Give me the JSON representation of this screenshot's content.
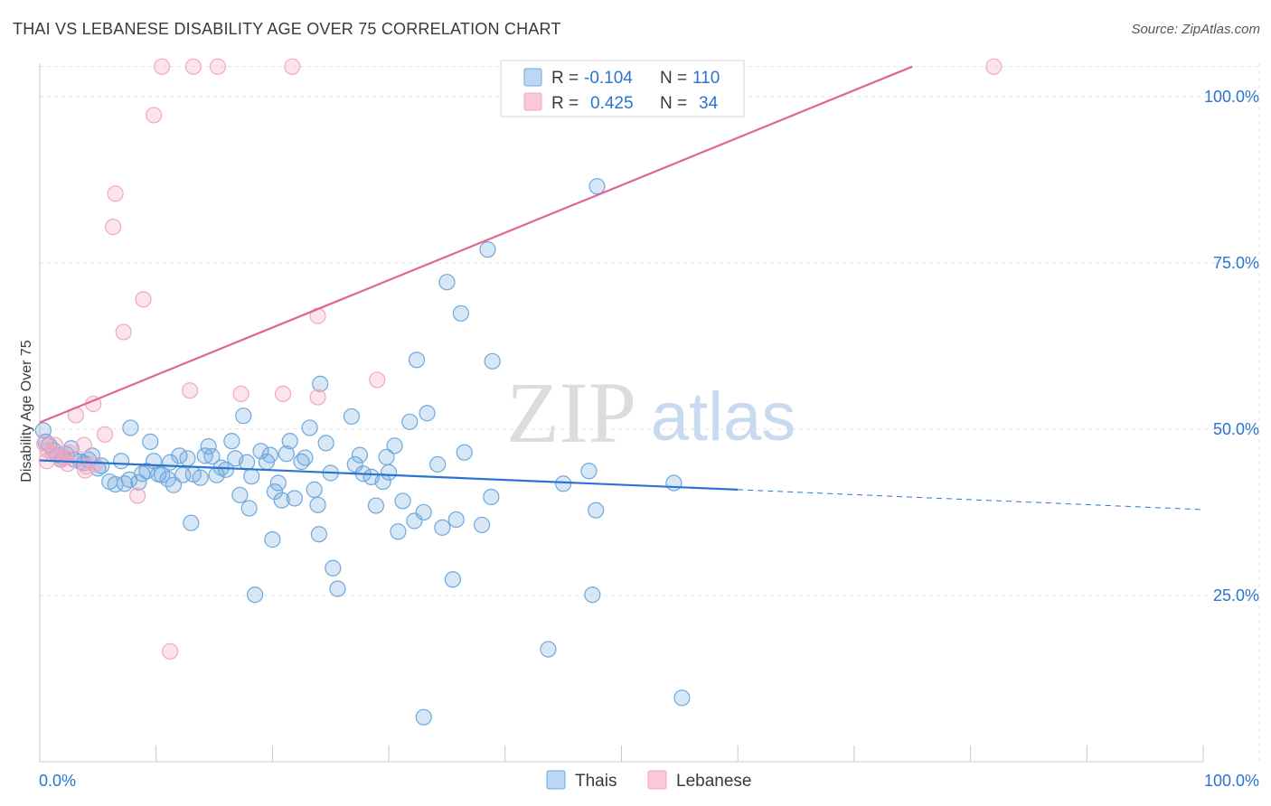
{
  "header": {
    "title": "THAI VS LEBANESE DISABILITY AGE OVER 75 CORRELATION CHART",
    "source": "Source: ZipAtlas.com"
  },
  "watermark": {
    "zip": "ZIP",
    "atlas": "atlas"
  },
  "chart_data": {
    "type": "scatter",
    "ylabel": "Disability Age Over 75",
    "xlim": [
      0,
      100
    ],
    "ylim": [
      0,
      105
    ],
    "x_tick_labels": [
      {
        "value": 0,
        "label": "0.0%"
      },
      {
        "value": 100,
        "label": "100.0%"
      }
    ],
    "y_tick_labels": [
      {
        "value": 25,
        "label": "25.0%"
      },
      {
        "value": 50,
        "label": "50.0%"
      },
      {
        "value": 75,
        "label": "75.0%"
      },
      {
        "value": 100,
        "label": "100.0%"
      }
    ],
    "grid": true,
    "legend_position": "top-center",
    "bottom_legend": [
      "Thais",
      "Lebanese"
    ],
    "colors": {
      "thais": "#6fa8dc",
      "thais_line": "#2b73d1",
      "lebanese": "#f4a7bf",
      "lebanese_line": "#e06690",
      "value_text": "#2b73d1",
      "label_text": "#3a3a3a"
    },
    "series": [
      {
        "name": "Thais",
        "r_label": "R =",
        "r": "-0.104",
        "n_label": "N =",
        "n": "110",
        "trend": {
          "x1": 0,
          "y1": 45.3,
          "x2": 60,
          "y2": 40.9,
          "dash_to_x": 100,
          "dash_to_y": 37.9
        },
        "points": [
          [
            0.3,
            49.8
          ],
          [
            0.5,
            48.1
          ],
          [
            0.8,
            47.6
          ],
          [
            1.2,
            46.8
          ],
          [
            1.5,
            46.1
          ],
          [
            1.8,
            45.5
          ],
          [
            2.0,
            45.8
          ],
          [
            2.3,
            46.2
          ],
          [
            2.7,
            47.1
          ],
          [
            3.0,
            45.4
          ],
          [
            3.5,
            45.1
          ],
          [
            3.8,
            44.9
          ],
          [
            4.2,
            45.4
          ],
          [
            4.5,
            46.0
          ],
          [
            5.0,
            44.1
          ],
          [
            5.3,
            44.5
          ],
          [
            6.0,
            42.1
          ],
          [
            6.5,
            41.7
          ],
          [
            7.0,
            45.2
          ],
          [
            7.3,
            41.8
          ],
          [
            7.7,
            42.4
          ],
          [
            7.8,
            50.2
          ],
          [
            8.5,
            42.0
          ],
          [
            8.8,
            43.3
          ],
          [
            9.2,
            43.7
          ],
          [
            9.5,
            48.1
          ],
          [
            9.8,
            45.2
          ],
          [
            10.2,
            43.2
          ],
          [
            10.5,
            43.1
          ],
          [
            11.0,
            42.5
          ],
          [
            11.2,
            45.0
          ],
          [
            11.5,
            41.6
          ],
          [
            12.0,
            46.0
          ],
          [
            12.3,
            43.1
          ],
          [
            12.7,
            45.6
          ],
          [
            13.2,
            43.2
          ],
          [
            13.0,
            35.9
          ],
          [
            13.8,
            42.7
          ],
          [
            14.2,
            46.0
          ],
          [
            14.5,
            47.4
          ],
          [
            14.8,
            45.9
          ],
          [
            15.2,
            43.1
          ],
          [
            15.6,
            44.2
          ],
          [
            16.0,
            43.9
          ],
          [
            16.5,
            48.2
          ],
          [
            16.8,
            45.6
          ],
          [
            17.2,
            40.1
          ],
          [
            17.5,
            52.0
          ],
          [
            17.8,
            45.0
          ],
          [
            18.2,
            42.9
          ],
          [
            18.5,
            25.1
          ],
          [
            19.0,
            46.7
          ],
          [
            19.5,
            45.1
          ],
          [
            19.8,
            46.1
          ],
          [
            20.2,
            40.6
          ],
          [
            20.5,
            41.9
          ],
          [
            20.8,
            39.3
          ],
          [
            21.2,
            46.3
          ],
          [
            21.5,
            48.2
          ],
          [
            21.9,
            39.6
          ],
          [
            22.5,
            45.1
          ],
          [
            22.8,
            45.7
          ],
          [
            23.2,
            50.2
          ],
          [
            23.6,
            40.9
          ],
          [
            23.9,
            38.6
          ],
          [
            24.1,
            56.8
          ],
          [
            24.6,
            47.9
          ],
          [
            25.0,
            43.4
          ],
          [
            25.2,
            29.1
          ],
          [
            25.6,
            26.0
          ],
          [
            26.8,
            51.9
          ],
          [
            27.1,
            44.7
          ],
          [
            27.5,
            46.1
          ],
          [
            27.8,
            43.3
          ],
          [
            28.5,
            42.8
          ],
          [
            28.9,
            38.5
          ],
          [
            29.5,
            42.1
          ],
          [
            29.8,
            45.8
          ],
          [
            30.0,
            43.5
          ],
          [
            30.5,
            47.5
          ],
          [
            30.8,
            34.6
          ],
          [
            31.2,
            39.2
          ],
          [
            31.8,
            51.1
          ],
          [
            32.2,
            36.2
          ],
          [
            32.4,
            60.4
          ],
          [
            33.0,
            37.5
          ],
          [
            33.3,
            52.4
          ],
          [
            34.2,
            44.7
          ],
          [
            34.6,
            35.2
          ],
          [
            35.0,
            72.1
          ],
          [
            35.5,
            27.4
          ],
          [
            35.8,
            36.4
          ],
          [
            36.2,
            67.4
          ],
          [
            36.5,
            46.5
          ],
          [
            38.0,
            35.6
          ],
          [
            38.5,
            77.0
          ],
          [
            38.8,
            39.8
          ],
          [
            38.9,
            60.2
          ],
          [
            45.0,
            41.8
          ],
          [
            47.2,
            43.7
          ],
          [
            47.5,
            25.1
          ],
          [
            47.8,
            37.8
          ],
          [
            47.9,
            86.5
          ],
          [
            54.5,
            41.9
          ],
          [
            55.2,
            9.6
          ],
          [
            43.7,
            16.9
          ],
          [
            33.0,
            6.7
          ],
          [
            18.0,
            38.1
          ],
          [
            24.0,
            34.2
          ],
          [
            20.0,
            33.4
          ]
        ]
      },
      {
        "name": "Lebanese",
        "r_label": "R =",
        "r": "0.425",
        "n_label": "N =",
        "n": "34",
        "trend": {
          "x1": 0,
          "y1": 51.0,
          "x2": 75,
          "y2": 104.5
        },
        "points": [
          [
            10.5,
            104.5
          ],
          [
            13.2,
            104.5
          ],
          [
            15.3,
            104.5
          ],
          [
            21.7,
            104.5
          ],
          [
            82.0,
            104.5
          ],
          [
            9.8,
            97.2
          ],
          [
            6.5,
            85.4
          ],
          [
            6.3,
            80.4
          ],
          [
            8.9,
            69.5
          ],
          [
            7.2,
            64.6
          ],
          [
            23.9,
            67.0
          ],
          [
            12.9,
            55.8
          ],
          [
            17.3,
            55.3
          ],
          [
            20.9,
            55.3
          ],
          [
            23.9,
            54.8
          ],
          [
            29.0,
            57.4
          ],
          [
            4.6,
            53.8
          ],
          [
            3.1,
            52.1
          ],
          [
            5.6,
            49.2
          ],
          [
            0.4,
            47.8
          ],
          [
            1.3,
            47.6
          ],
          [
            0.7,
            46.8
          ],
          [
            2.5,
            46.5
          ],
          [
            3.8,
            47.6
          ],
          [
            1.1,
            46.3
          ],
          [
            1.8,
            45.4
          ],
          [
            2.2,
            45.7
          ],
          [
            0.6,
            45.2
          ],
          [
            2.4,
            44.8
          ],
          [
            4.0,
            44.4
          ],
          [
            3.9,
            43.8
          ],
          [
            4.7,
            44.7
          ],
          [
            8.4,
            40.0
          ],
          [
            11.2,
            16.6
          ]
        ]
      }
    ]
  }
}
